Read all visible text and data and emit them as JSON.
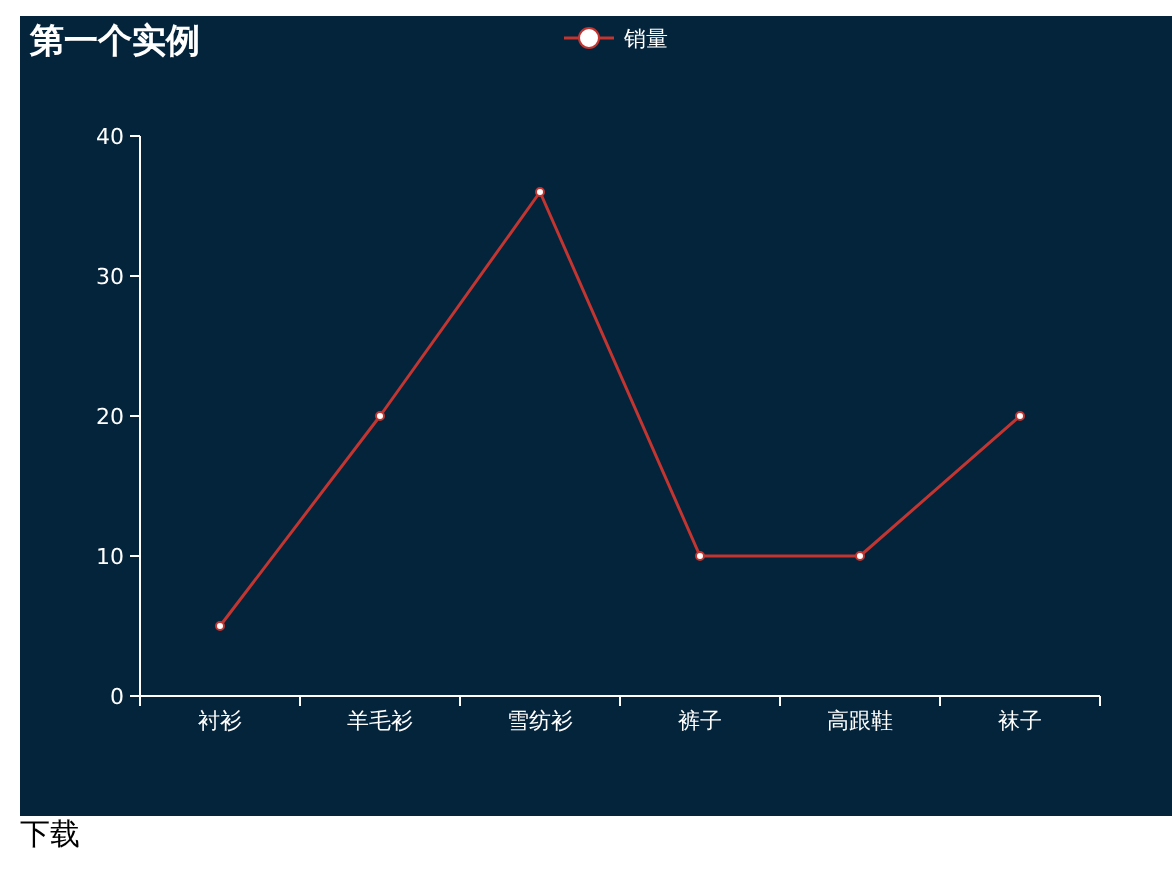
{
  "chart_data": {
    "type": "line",
    "title": "第一个实例",
    "categories": [
      "衬衫",
      "羊毛衫",
      "雪纺衫",
      "裤子",
      "高跟鞋",
      "袜子"
    ],
    "series": [
      {
        "name": "销量",
        "color": "#c23531",
        "values": [
          5,
          20,
          36,
          10,
          10,
          20
        ]
      }
    ],
    "ylim": [
      0,
      40
    ],
    "yticks": [
      0,
      10,
      20,
      30,
      40
    ],
    "grid": false,
    "legend": "top",
    "marker": "circle",
    "annotations": [
      "下载"
    ]
  }
}
